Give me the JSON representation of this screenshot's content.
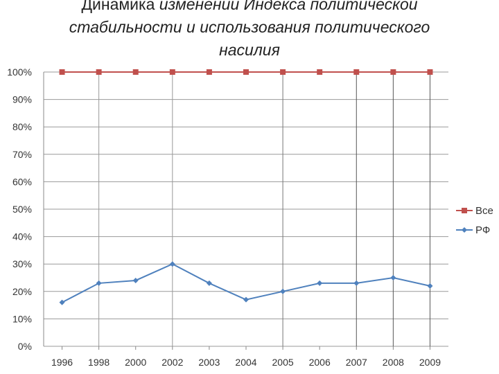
{
  "title": {
    "line1_plain": "Динамика ",
    "line1_italic": "изменений Индекса политической",
    "line2": "стабильности и использования политического",
    "line3": "насилия"
  },
  "chart_data": {
    "type": "line",
    "categories": [
      "1996",
      "1998",
      "2000",
      "2002",
      "2003",
      "2004",
      "2005",
      "2006",
      "2007",
      "2008",
      "2009"
    ],
    "ylim": [
      0,
      100
    ],
    "yticks": [
      "0%",
      "10%",
      "20%",
      "30%",
      "40%",
      "50%",
      "60%",
      "70%",
      "80%",
      "90%",
      "100%"
    ],
    "grid": true,
    "legend_position": "right",
    "series": [
      {
        "name": "Все",
        "color": "#c0504d",
        "marker": "square",
        "values": [
          100,
          100,
          100,
          100,
          100,
          100,
          100,
          100,
          100,
          100,
          100
        ]
      },
      {
        "name": "РФ",
        "color": "#4f81bd",
        "marker": "diamond",
        "values": [
          16,
          23,
          24,
          30,
          23,
          17,
          20,
          23,
          23,
          25,
          22
        ]
      }
    ],
    "gridline_color": "#999999",
    "axis_color": "#888888",
    "vertical_lines": [
      {
        "category": "1998",
        "color": "#999999"
      },
      {
        "category": "2002",
        "color": "#999999"
      },
      {
        "category": "2005",
        "color": "#777777"
      },
      {
        "category": "2007",
        "color": "#555555"
      },
      {
        "category": "2008",
        "color": "#555555"
      },
      {
        "category": "2009",
        "color": "#555555"
      }
    ]
  }
}
